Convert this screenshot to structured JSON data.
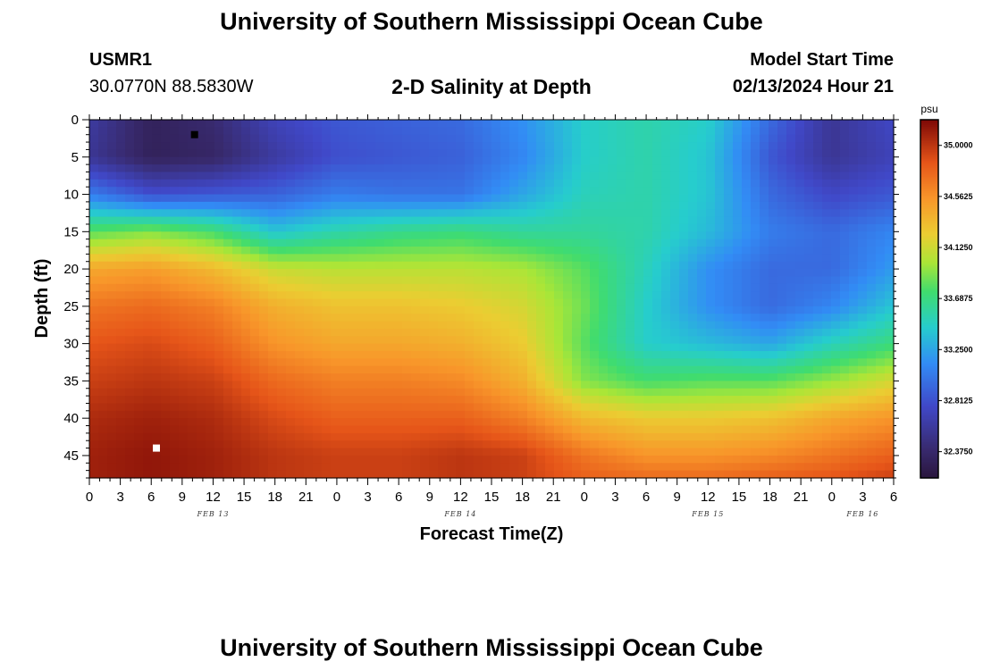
{
  "header": {
    "title": "University of Southern Mississippi Ocean Cube",
    "station_id": "USMR1",
    "coordinates": "30.0770N  88.5830W",
    "plot_title": "2-D Salinity at Depth",
    "model_start_label": "Model Start Time",
    "model_start_value": "02/13/2024 Hour 21"
  },
  "footer": {
    "title": "University of Southern Mississippi Ocean Cube"
  },
  "chart_data": {
    "type": "heatmap",
    "title": "2-D Salinity at Depth",
    "xlabel": "Forecast Time(Z)",
    "ylabel": "Depth (ft)",
    "x_unit": "hours since Feb 13 00Z",
    "xlim": [
      0,
      78
    ],
    "ylim": [
      0,
      48
    ],
    "x_tick_values": [
      0,
      3,
      6,
      9,
      12,
      15,
      18,
      21,
      24,
      27,
      30,
      33,
      36,
      39,
      42,
      45,
      48,
      51,
      54,
      57,
      60,
      63,
      66,
      69,
      72,
      75,
      78
    ],
    "x_tick_labels": [
      "0",
      "3",
      "6",
      "9",
      "12",
      "15",
      "18",
      "21",
      "0",
      "3",
      "6",
      "9",
      "12",
      "15",
      "18",
      "21",
      "0",
      "3",
      "6",
      "9",
      "12",
      "15",
      "18",
      "21",
      "0",
      "3",
      "6"
    ],
    "y_tick_values": [
      0,
      5,
      10,
      15,
      20,
      25,
      30,
      35,
      40,
      45
    ],
    "y_tick_labels": [
      "0",
      "5",
      "10",
      "15",
      "20",
      "25",
      "30",
      "35",
      "40",
      "45"
    ],
    "date_labels": [
      {
        "x": 12,
        "label": "FEB 13"
      },
      {
        "x": 36,
        "label": "FEB 14"
      },
      {
        "x": 60,
        "label": "FEB 15"
      },
      {
        "x": 75,
        "label": "FEB 16"
      }
    ],
    "colorbar": {
      "unit": "psu",
      "min": 32.15,
      "max": 35.22,
      "tick_values": [
        35.0,
        34.5625,
        34.125,
        33.6875,
        33.25,
        32.8125,
        32.375
      ],
      "tick_labels": [
        "35.0000",
        "34.5625",
        "34.1250",
        "33.6875",
        "33.2500",
        "32.8125",
        "32.3750"
      ]
    },
    "salinity_psu_estimated": {
      "times": [
        0,
        6,
        12,
        18,
        24,
        30,
        36,
        42,
        48,
        54,
        60,
        66,
        72,
        78
      ],
      "depths": [
        0,
        5,
        10,
        15,
        20,
        25,
        30,
        35,
        40,
        45,
        48
      ],
      "values": [
        [
          32.6,
          32.3,
          32.4,
          32.7,
          32.85,
          32.9,
          32.95,
          33.15,
          33.45,
          33.55,
          33.45,
          32.95,
          32.55,
          32.75
        ],
        [
          32.55,
          32.3,
          32.35,
          32.6,
          32.8,
          32.85,
          32.9,
          33.1,
          33.45,
          33.55,
          33.4,
          32.85,
          32.55,
          32.7
        ],
        [
          33.05,
          32.8,
          32.85,
          32.9,
          33.05,
          33.0,
          33.0,
          33.25,
          33.5,
          33.55,
          33.4,
          32.95,
          32.75,
          32.85
        ],
        [
          33.8,
          33.9,
          33.75,
          33.4,
          33.55,
          33.65,
          33.7,
          33.6,
          33.6,
          33.55,
          33.35,
          33.05,
          32.95,
          33.1
        ],
        [
          34.45,
          34.5,
          34.35,
          34.1,
          34.05,
          34.05,
          34.05,
          34.0,
          33.8,
          33.5,
          33.15,
          32.95,
          32.95,
          33.2
        ],
        [
          34.7,
          34.75,
          34.65,
          34.4,
          34.3,
          34.3,
          34.25,
          34.15,
          33.85,
          33.45,
          33.15,
          32.95,
          33.1,
          33.4
        ],
        [
          34.85,
          34.9,
          34.8,
          34.55,
          34.45,
          34.45,
          34.4,
          34.25,
          33.8,
          33.45,
          33.35,
          33.25,
          33.5,
          33.7
        ],
        [
          34.95,
          35.0,
          34.95,
          34.75,
          34.65,
          34.65,
          34.6,
          34.4,
          33.9,
          33.75,
          33.8,
          33.8,
          33.95,
          34.15
        ],
        [
          35.05,
          35.1,
          35.05,
          34.9,
          34.8,
          34.8,
          34.8,
          34.65,
          34.35,
          34.25,
          34.25,
          34.3,
          34.45,
          34.55
        ],
        [
          35.1,
          35.15,
          35.1,
          35.0,
          34.95,
          34.95,
          35.0,
          34.95,
          34.7,
          34.55,
          34.55,
          34.6,
          34.7,
          34.8
        ],
        [
          35.1,
          35.15,
          35.1,
          35.0,
          34.95,
          34.95,
          35.0,
          34.95,
          34.8,
          34.75,
          34.75,
          34.8,
          34.85,
          34.95
        ]
      ]
    },
    "markers": [
      {
        "name": "min-salinity-marker",
        "x": 10.2,
        "y": 2,
        "color": "#000000"
      },
      {
        "name": "max-salinity-marker",
        "x": 6.5,
        "y": 44,
        "color": "#ffffff"
      }
    ]
  }
}
